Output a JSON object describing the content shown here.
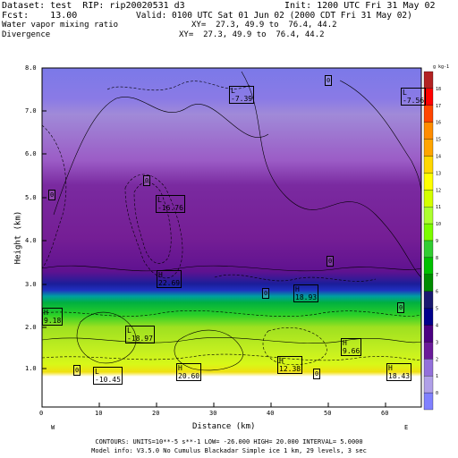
{
  "header": {
    "line1_left": "Dataset: test  RIP: rip20020531 d3",
    "line1_right": "Init: 1200 UTC Fri 31 May 02",
    "line2_left": "Fcst:    13.00",
    "line2_right": "Valid: 0100 UTC Sat 01 Jun 02 (2000 CDT Fri 31 May 02)",
    "line3_left": "Water vapor mixing ratio",
    "line3_right": "XY=  27.3, 49.9 to  76.4, 44.2",
    "line4_left": "Divergence",
    "line4_right": "XY=  27.3, 49.9 to  76.4, 44.2"
  },
  "axes": {
    "ylabel": "Height (km)",
    "xlabel": "Distance (km)",
    "yticks": [
      "1.0",
      "2.0",
      "3.0",
      "4.0",
      "5.0",
      "6.0",
      "7.0",
      "8.0"
    ],
    "xticks": [
      "0",
      "10",
      "20",
      "30",
      "40",
      "50",
      "60"
    ],
    "left_end": "W",
    "right_end": "E"
  },
  "colorbar": {
    "unit": "g kg-1",
    "labels": [
      "18",
      "17",
      "16",
      "15",
      "14",
      "13",
      "12",
      "11",
      "10",
      "9",
      "8",
      "7",
      "6",
      "5",
      "4",
      "3",
      "2",
      "1",
      "0"
    ],
    "colors": [
      "#b22222",
      "#ff0000",
      "#ff4500",
      "#ff8c00",
      "#ffa500",
      "#ffd700",
      "#ffff00",
      "#d4ff00",
      "#adff2f",
      "#7cfc00",
      "#32cd32",
      "#00c000",
      "#008b00",
      "#191970",
      "#00008b",
      "#4b0082",
      "#6a1b9a",
      "#9370db",
      "#b0a0e8",
      "#8080ff"
    ]
  },
  "annotations": {
    "lows": [
      "L\n-7.39",
      "L\n-7.56",
      "L\n-16.76",
      "L\n-18.97",
      "L\n-10.45"
    ],
    "highs": [
      "H\n22.69",
      "H\n18.93",
      "H\n9.18",
      "H\n20.60",
      "H\n12.38",
      "H\n9.66",
      "H\n18.43"
    ],
    "zero_label": "0"
  },
  "footer": {
    "line1": "CONTOURS:  UNITS=10**-5 s**-1  LOW=  -26.000       HIGH=  20.000       INTERVAL=   5.0000",
    "line2": "Model info: V3.5.0 No Cumulus Blackadar  Simple ice    1 km,  29 levels,    3 sec"
  }
}
